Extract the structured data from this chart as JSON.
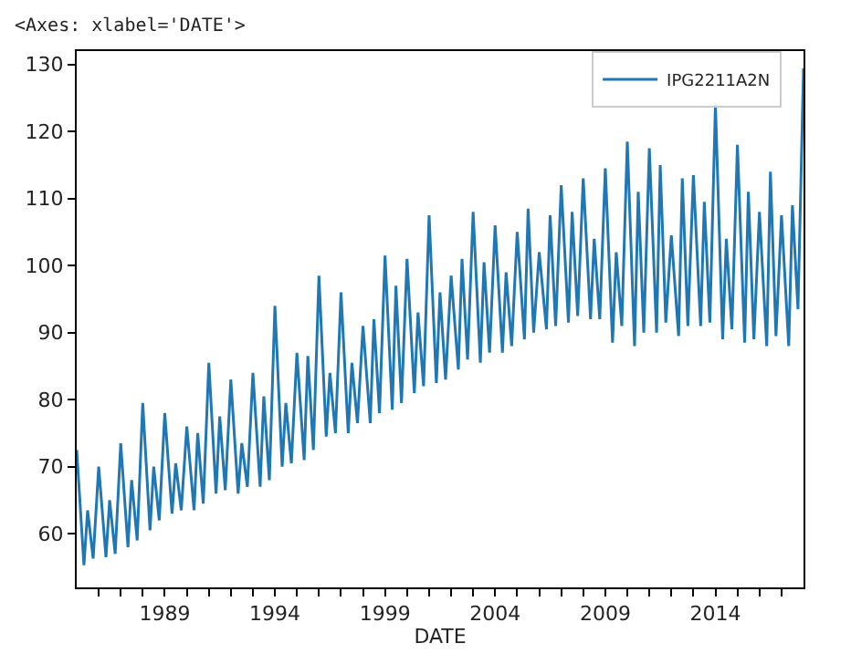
{
  "chart_data": {
    "type": "line",
    "annotations": [
      "<Axes: xlabel='DATE'>"
    ],
    "xlabel": "DATE",
    "x": [
      "1985-01",
      "1985-05",
      "1985-07",
      "1985-10",
      "1986-01",
      "1986-05",
      "1986-07",
      "1986-10",
      "1987-01",
      "1987-05",
      "1987-07",
      "1987-10",
      "1988-01",
      "1988-05",
      "1988-07",
      "1988-10",
      "1989-01",
      "1989-05",
      "1989-07",
      "1989-10",
      "1990-01",
      "1990-05",
      "1990-07",
      "1990-10",
      "1991-01",
      "1991-05",
      "1991-07",
      "1991-10",
      "1992-01",
      "1992-05",
      "1992-07",
      "1992-10",
      "1993-01",
      "1993-05",
      "1993-07",
      "1993-10",
      "1994-01",
      "1994-05",
      "1994-07",
      "1994-10",
      "1995-01",
      "1995-05",
      "1995-07",
      "1995-10",
      "1996-01",
      "1996-05",
      "1996-07",
      "1996-10",
      "1997-01",
      "1997-05",
      "1997-07",
      "1997-10",
      "1998-01",
      "1998-05",
      "1998-07",
      "1998-10",
      "1999-01",
      "1999-05",
      "1999-07",
      "1999-10",
      "2000-01",
      "2000-05",
      "2000-07",
      "2000-10",
      "2001-01",
      "2001-05",
      "2001-07",
      "2001-10",
      "2002-01",
      "2002-05",
      "2002-07",
      "2002-10",
      "2003-01",
      "2003-05",
      "2003-07",
      "2003-10",
      "2004-01",
      "2004-05",
      "2004-07",
      "2004-10",
      "2005-01",
      "2005-05",
      "2005-07",
      "2005-10",
      "2006-01",
      "2006-05",
      "2006-07",
      "2006-10",
      "2007-01",
      "2007-05",
      "2007-07",
      "2007-10",
      "2008-01",
      "2008-05",
      "2008-07",
      "2008-10",
      "2009-01",
      "2009-05",
      "2009-07",
      "2009-10",
      "2010-01",
      "2010-05",
      "2010-07",
      "2010-10",
      "2011-01",
      "2011-05",
      "2011-07",
      "2011-10",
      "2012-01",
      "2012-05",
      "2012-07",
      "2012-10",
      "2013-01",
      "2013-05",
      "2013-07",
      "2013-10",
      "2014-01",
      "2014-05",
      "2014-07",
      "2014-10",
      "2015-01",
      "2015-05",
      "2015-07",
      "2015-10",
      "2016-01",
      "2016-05",
      "2016-07",
      "2016-10",
      "2017-01",
      "2017-05",
      "2017-07",
      "2017-10",
      "2018-01"
    ],
    "series": [
      {
        "name": "IPG2211A2N",
        "color": "#1f77b4",
        "values": [
          72.5,
          55.3,
          63.5,
          56.3,
          70.0,
          56.5,
          65.0,
          57.0,
          73.5,
          58.0,
          68.0,
          59.0,
          79.5,
          60.5,
          70.0,
          62.0,
          78.0,
          63.0,
          70.5,
          63.5,
          76.0,
          63.5,
          75.0,
          64.5,
          85.5,
          66.0,
          77.5,
          66.5,
          83.0,
          66.0,
          73.5,
          67.0,
          84.0,
          67.0,
          80.5,
          68.0,
          94.0,
          70.0,
          79.5,
          70.5,
          87.0,
          71.0,
          86.5,
          72.5,
          98.5,
          74.5,
          84.0,
          75.0,
          96.0,
          75.0,
          85.5,
          76.5,
          91.0,
          76.5,
          92.0,
          78.0,
          101.5,
          78.5,
          97.0,
          79.5,
          101.0,
          81.0,
          93.0,
          82.0,
          107.5,
          82.5,
          96.0,
          83.0,
          98.5,
          84.5,
          101.0,
          86.0,
          108.0,
          85.5,
          100.5,
          87.0,
          106.0,
          87.0,
          99.0,
          88.0,
          105.0,
          89.0,
          108.5,
          90.0,
          102.0,
          90.5,
          107.5,
          91.0,
          112.0,
          91.5,
          108.0,
          92.5,
          113.0,
          92.0,
          104.0,
          92.0,
          114.5,
          88.5,
          102.0,
          91.0,
          118.5,
          88.0,
          111.0,
          90.0,
          117.5,
          90.0,
          115.0,
          91.5,
          104.5,
          89.5,
          113.0,
          91.0,
          113.5,
          91.0,
          109.5,
          91.5,
          124.0,
          89.0,
          104.0,
          90.5,
          118.0,
          88.5,
          111.0,
          89.0,
          108.0,
          88.0,
          114.0,
          89.5,
          107.5,
          88.0,
          109.0,
          93.5,
          129.4
        ]
      }
    ],
    "xlim": [
      "1985-01",
      "2018-01"
    ],
    "xticks": [
      {
        "value": "1986",
        "label": null
      },
      {
        "value": "1987",
        "label": null
      },
      {
        "value": "1988",
        "label": null
      },
      {
        "value": "1989",
        "label": "1989"
      },
      {
        "value": "1990",
        "label": null
      },
      {
        "value": "1991",
        "label": null
      },
      {
        "value": "1992",
        "label": null
      },
      {
        "value": "1993",
        "label": null
      },
      {
        "value": "1994",
        "label": "1994"
      },
      {
        "value": "1995",
        "label": null
      },
      {
        "value": "1996",
        "label": null
      },
      {
        "value": "1997",
        "label": null
      },
      {
        "value": "1998",
        "label": null
      },
      {
        "value": "1999",
        "label": "1999"
      },
      {
        "value": "2000",
        "label": null
      },
      {
        "value": "2001",
        "label": null
      },
      {
        "value": "2002",
        "label": null
      },
      {
        "value": "2003",
        "label": null
      },
      {
        "value": "2004",
        "label": "2004"
      },
      {
        "value": "2005",
        "label": null
      },
      {
        "value": "2006",
        "label": null
      },
      {
        "value": "2007",
        "label": null
      },
      {
        "value": "2008",
        "label": null
      },
      {
        "value": "2009",
        "label": "2009"
      },
      {
        "value": "2010",
        "label": null
      },
      {
        "value": "2011",
        "label": null
      },
      {
        "value": "2012",
        "label": null
      },
      {
        "value": "2013",
        "label": null
      },
      {
        "value": "2014",
        "label": "2014"
      },
      {
        "value": "2015",
        "label": null
      },
      {
        "value": "2016",
        "label": null
      },
      {
        "value": "2017",
        "label": null
      }
    ],
    "ylim": [
      52,
      132
    ],
    "yticks": [
      60,
      70,
      80,
      90,
      100,
      110,
      120,
      130
    ],
    "legend": "top right",
    "marker": "none",
    "line_style": "solid"
  }
}
